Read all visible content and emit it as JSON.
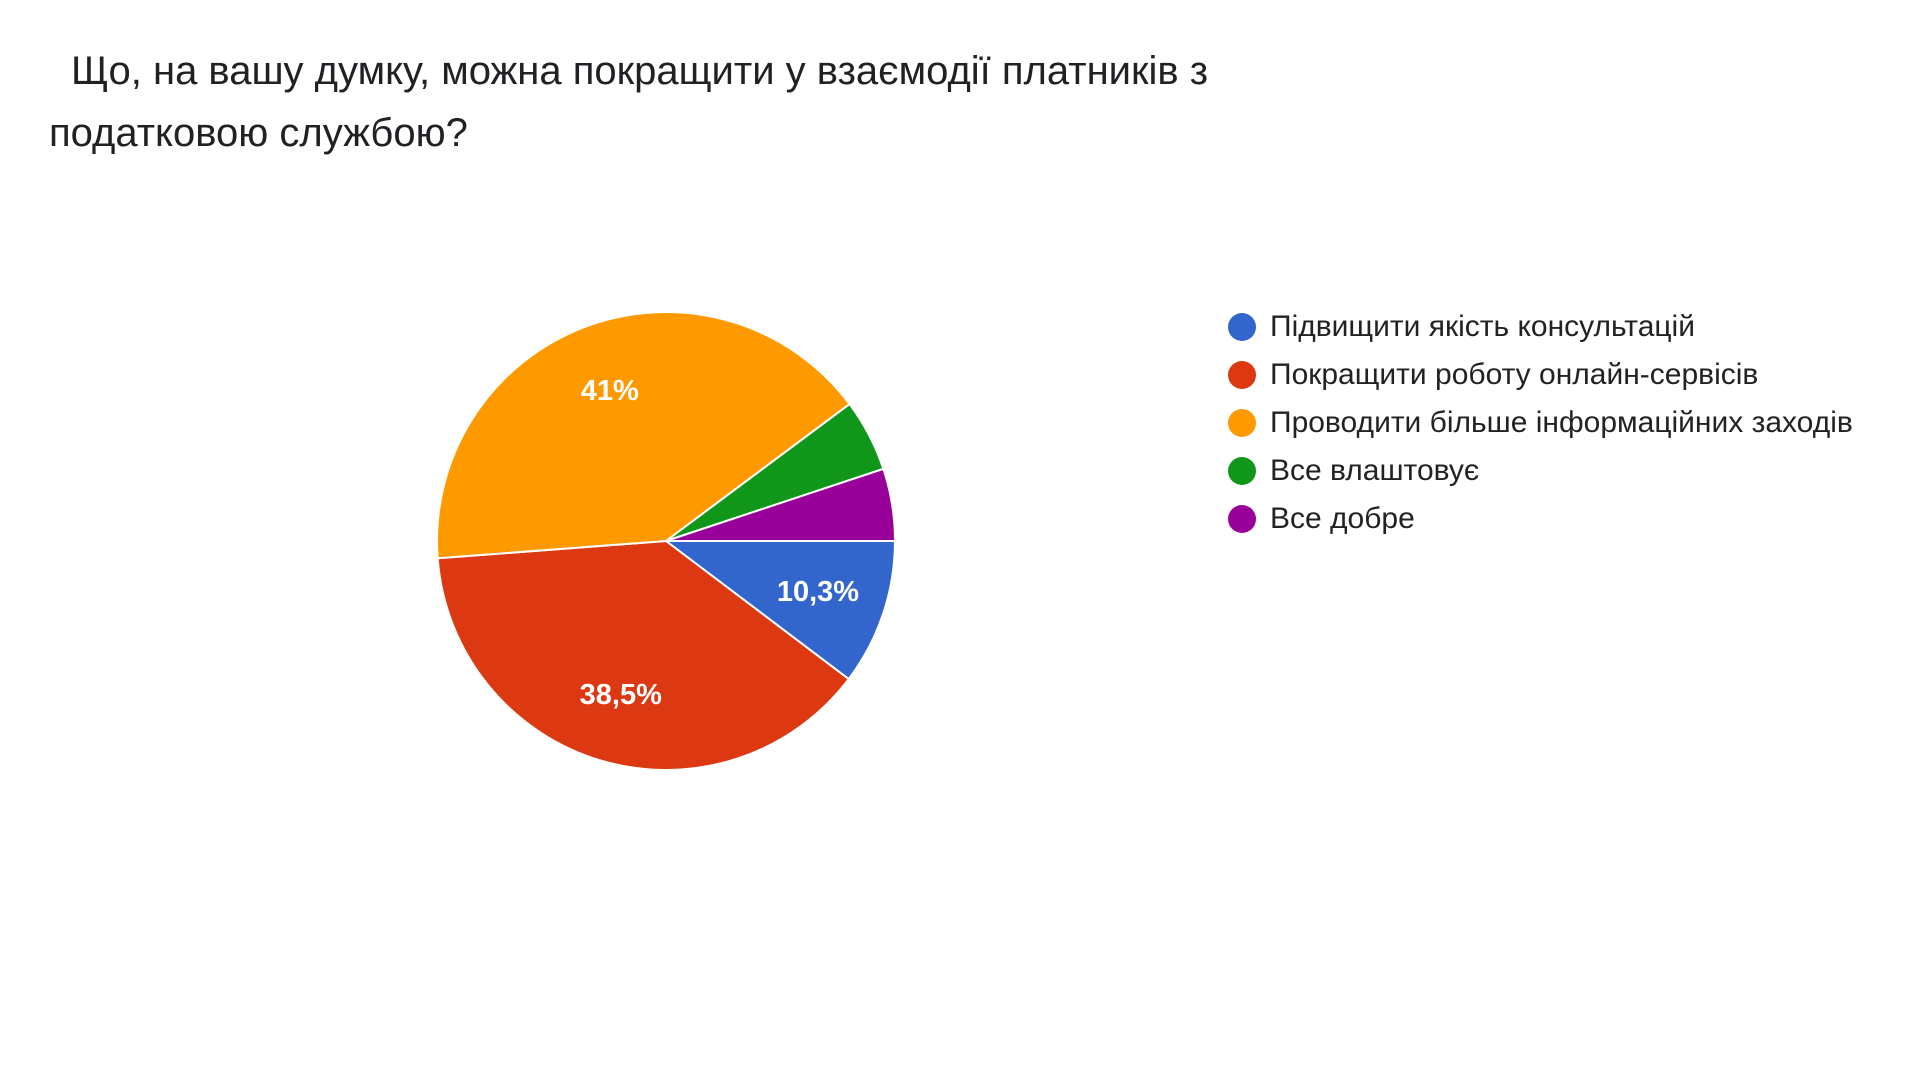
{
  "title_lines": [
    "Що, на вашу думку, можна покращити у взаємодії платників з",
    "податковою службою?"
  ],
  "chart_data": {
    "type": "pie",
    "title": "Що, на вашу думку, можна покращити у взаємодії платників з податковою службою?",
    "legend_position": "right",
    "slices": [
      {
        "label": "Підвищити якість консультацій",
        "value": 10.3,
        "display": "10,3%",
        "color": "#3366CC"
      },
      {
        "label": "Покращити роботу онлайн-сервісів",
        "value": 38.5,
        "display": "38,5%",
        "color": "#DC3912"
      },
      {
        "label": "Проводити більше інформаційних заходів",
        "value": 41.0,
        "display": "41%",
        "color": "#FF9900"
      },
      {
        "label": "Все влаштовує",
        "value": 5.1,
        "display": "",
        "color": "#109618"
      },
      {
        "label": "Все добре",
        "value": 5.1,
        "display": "",
        "color": "#990099"
      }
    ]
  }
}
